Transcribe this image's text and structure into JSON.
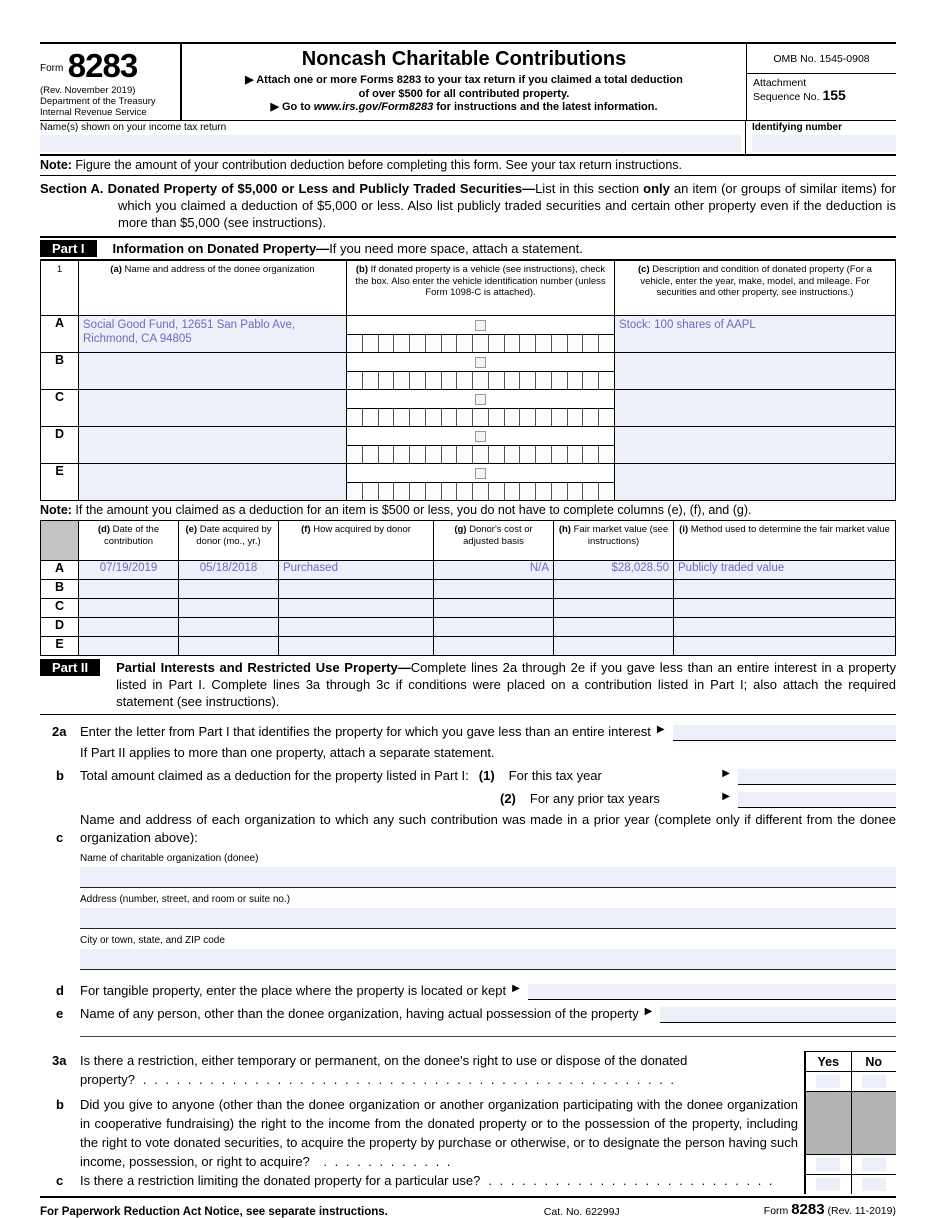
{
  "header": {
    "form_word": "Form",
    "form_number": "8283",
    "rev": "(Rev. November 2019)",
    "dept": "Department of the Treasury",
    "irs": "Internal Revenue Service",
    "title": "Noncash Charitable Contributions",
    "bullet1_line1": "▶ Attach one or more Forms 8283 to your tax return if you claimed a total deduction",
    "bullet1_line2": "of over $500 for all contributed property.",
    "bullet2_pre": "▶ Go to ",
    "bullet2_url": "www.irs.gov/Form8283",
    "bullet2_post": " for instructions and the latest information.",
    "omb": "OMB No. 1545-0908",
    "attachment_line1": "Attachment",
    "attachment_line2": "Sequence No.",
    "attachment_no": "155",
    "name_label": "Name(s) shown on your income tax return",
    "id_label": "Identifying number"
  },
  "note1": {
    "label": "Note:",
    "text": " Figure the amount of your contribution deduction before completing this form. See your tax return instructions."
  },
  "section_a": {
    "label": "Section A.",
    "bold": " Donated Property of $5,000 or Less and Publicly Traded Securities—",
    "t1": "List in this section ",
    "bold2": "only",
    "t2": " an item (or groups of similar items) for which you claimed a deduction of $5,000 or less. Also list publicly traded securities and certain other property even if the deduction is more than $5,000 (see instructions)."
  },
  "part1": {
    "badge": "Part I",
    "bold": "Information on Donated Property—",
    "rest": "If you need more space, attach a statement."
  },
  "table1": {
    "row_number": "1",
    "col_a_prefix": "(a)",
    "col_a": " Name and address of the donee organization",
    "col_b_prefix": "(b)",
    "col_b": " If donated property is a vehicle (see instructions), check the box. Also enter the vehicle identification number (unless Form 1098-C is attached).",
    "col_c_prefix": "(c)",
    "col_c": " Description and condition of donated property (For a vehicle, enter the year, make, model, and mileage. For securities and other property, see instructions.)",
    "rows": [
      {
        "letter": "A",
        "name": "Social Good Fund, 12651 San Pablo Ave, Richmond, CA 94805",
        "desc": "Stock: 100 shares of AAPL"
      },
      {
        "letter": "B",
        "name": "",
        "desc": ""
      },
      {
        "letter": "C",
        "name": "",
        "desc": ""
      },
      {
        "letter": "D",
        "name": "",
        "desc": ""
      },
      {
        "letter": "E",
        "name": "",
        "desc": ""
      }
    ]
  },
  "note2": {
    "label": "Note:",
    "text": " If the amount you claimed as a deduction for an item is $500 or less, you do not have to complete columns (e), (f), and (g)."
  },
  "table2": {
    "headers": [
      {
        "p": "(d)",
        "t": " Date of the contribution"
      },
      {
        "p": "(e)",
        "t": " Date acquired by donor (mo., yr.)"
      },
      {
        "p": "(f)",
        "t": " How acquired by donor"
      },
      {
        "p": "(g)",
        "t": " Donor's cost or adjusted basis"
      },
      {
        "p": "(h)",
        "t": " Fair market value (see instructions)"
      },
      {
        "p": "(i)",
        "t": " Method used to determine the fair market value"
      }
    ],
    "rows": [
      {
        "letter": "A",
        "d": "07/19/2019",
        "e": "05/18/2018",
        "f": "Purchased",
        "g": "N/A",
        "h": "$28,028.50",
        "i": "Publicly traded value"
      },
      {
        "letter": "B",
        "d": "",
        "e": "",
        "f": "",
        "g": "",
        "h": "",
        "i": ""
      },
      {
        "letter": "C",
        "d": "",
        "e": "",
        "f": "",
        "g": "",
        "h": "",
        "i": ""
      },
      {
        "letter": "D",
        "d": "",
        "e": "",
        "f": "",
        "g": "",
        "h": "",
        "i": ""
      },
      {
        "letter": "E",
        "d": "",
        "e": "",
        "f": "",
        "g": "",
        "h": "",
        "i": ""
      }
    ]
  },
  "part2": {
    "badge": "Part II",
    "bold": "Partial Interests and Restricted Use Property—",
    "rest": "Complete lines 2a through 2e if you gave less than an entire interest in a property listed in Part I. Complete lines 3a through 3c if conditions were placed on a contribution listed in Part I; also attach the required statement (see instructions)."
  },
  "line2a": {
    "num": "2a",
    "text": "Enter the letter from Part I that identifies the property for which you gave less than an entire interest",
    "arrow": "▶",
    "text2": "If Part II applies to more than one property, attach a separate statement."
  },
  "line2b": {
    "num": "b",
    "text": "Total amount claimed as a deduction for the property listed in Part I:",
    "i1": "(1)",
    "t1": "For this tax year",
    "i2": "(2)",
    "t2": "For any prior tax years",
    "arrow1": "▶",
    "arrow2": "▶"
  },
  "line2c": {
    "num": "c",
    "text": "Name and address of each organization to which any such contribution was made in a prior year (complete only if different from the donee organization above):",
    "org_label": "Name of charitable organization (donee)",
    "addr_label": "Address (number, street, and room or suite no.)",
    "city_label": "City or town, state, and ZIP code"
  },
  "line2d": {
    "num": "d",
    "text": "For tangible property, enter the place where the property is located or kept",
    "arrow": "▶"
  },
  "line2e": {
    "num": "e",
    "text": "Name of any person, other than the donee organization, having actual possession of the property",
    "arrow": "▶"
  },
  "line3a": {
    "num": "3a",
    "line1": "Is there a restriction, either temporary or permanent, on the donee's right to use or dispose of the donated",
    "line2": "property?",
    "dots": ". . . . . . . . . . . . . . . . . . . . . . . . . . . . . . . . . . . . . . . . . . . . . . . ."
  },
  "line3b": {
    "num": "b",
    "text": "Did you give to anyone (other than the donee organization or another organization participating with the donee organization in cooperative fundraising) the right to the income from the donated property or to the possession of the property, including the right to vote donated securities, to acquire the property by purchase or otherwise, or to designate the person having such income, possession, or right to acquire?",
    "dots": " . . . . . . . . . . . ."
  },
  "line3c": {
    "num": "c",
    "text": "Is there a restriction limiting the donated property for a particular use?",
    "dots": ". . . . . . . . . . . . . . . . . . . . . . . . . ."
  },
  "yesno": {
    "yes": "Yes",
    "no": "No"
  },
  "footer": {
    "left": "For Paperwork Reduction Act Notice, see separate instructions.",
    "cat": "Cat. No. 62299J",
    "form_word": "Form",
    "form_number": "8283",
    "rev": " (Rev. 11-2019)"
  },
  "colors": {
    "field_fill": "#edeff9",
    "value_text": "#6a6cc0",
    "shaded_block": "#b3b3b3",
    "header_gray": "#c4c4c4"
  }
}
